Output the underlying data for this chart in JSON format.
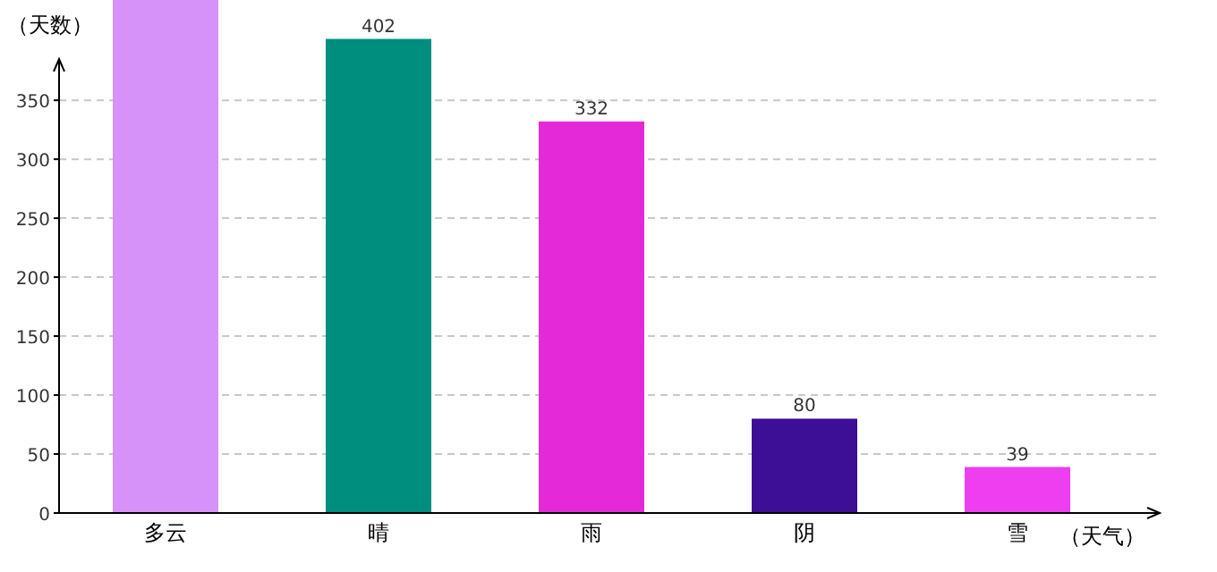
{
  "chart_data": {
    "type": "bar",
    "ylabel": "（天数）",
    "xlabel": "（天气）",
    "categories": [
      "多云",
      "晴",
      "雨",
      "阴",
      "雪"
    ],
    "values": [
      435,
      402,
      332,
      80,
      39
    ],
    "colors": [
      "#d692f8",
      "#008e7e",
      "#e42ad8",
      "#3d0e96",
      "#ee3ef0"
    ],
    "value_labels": [
      null,
      "402",
      "332",
      "80",
      "39"
    ],
    "ylim": [
      0,
      435
    ],
    "yticks": [
      0,
      50,
      100,
      150,
      200,
      250,
      300,
      350
    ],
    "grid": "y"
  }
}
